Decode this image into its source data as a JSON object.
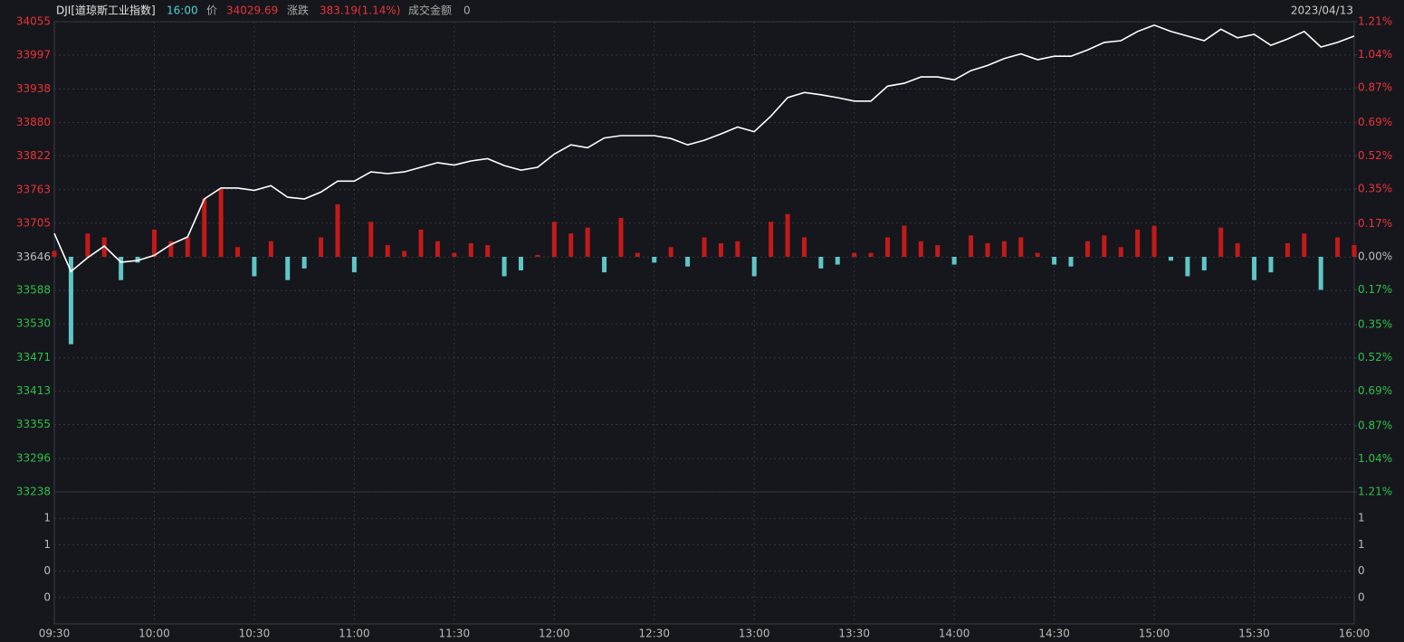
{
  "chart_data": {
    "type": "line",
    "title": "DJI[道琼斯工业指数]",
    "time": "16:00",
    "price_label": "价",
    "price": 34029.69,
    "change_label": "涨跌",
    "change": "383.19(1.14%)",
    "turnover_label": "成交金额",
    "turnover": 0,
    "date": "2023/04/13",
    "x": [
      "09:30",
      "09:35",
      "09:40",
      "09:45",
      "09:50",
      "09:55",
      "10:00",
      "10:05",
      "10:10",
      "10:15",
      "10:20",
      "10:25",
      "10:30",
      "10:35",
      "10:40",
      "10:45",
      "10:50",
      "10:55",
      "11:00",
      "11:05",
      "11:10",
      "11:15",
      "11:20",
      "11:25",
      "11:30",
      "11:35",
      "11:40",
      "11:45",
      "11:50",
      "11:55",
      "12:00",
      "12:05",
      "12:10",
      "12:15",
      "12:20",
      "12:25",
      "12:30",
      "12:35",
      "12:40",
      "12:45",
      "12:50",
      "12:55",
      "13:00",
      "13:05",
      "13:10",
      "13:15",
      "13:20",
      "13:25",
      "13:30",
      "13:35",
      "13:40",
      "13:45",
      "13:50",
      "13:55",
      "14:00",
      "14:05",
      "14:10",
      "14:15",
      "14:20",
      "14:25",
      "14:30",
      "14:35",
      "14:40",
      "14:45",
      "14:50",
      "14:55",
      "15:00",
      "15:05",
      "15:10",
      "15:15",
      "15:20",
      "15:25",
      "15:30",
      "15:35",
      "15:40",
      "15:45",
      "15:50",
      "15:55",
      "16:00"
    ],
    "series": [
      {
        "type": "line",
        "color": "#ffffff",
        "values": [
          33687,
          33621,
          33645,
          33665,
          33637,
          33640,
          33649,
          33668,
          33681,
          33747,
          33766,
          33766,
          33762,
          33770,
          33750,
          33747,
          33759,
          33778,
          33778,
          33794,
          33791,
          33794,
          33802,
          33810,
          33806,
          33813,
          33817,
          33805,
          33797,
          33802,
          33825,
          33841,
          33836,
          33853,
          33857,
          33857,
          33857,
          33852,
          33841,
          33849,
          33860,
          33872,
          33864,
          33891,
          33923,
          33932,
          33928,
          33923,
          33917,
          33917,
          33943,
          33948,
          33959,
          33959,
          33954,
          33970,
          33979,
          33991,
          33999,
          33989,
          33995,
          33995,
          34006,
          34019,
          34022,
          34038,
          34049,
          34038,
          34030,
          34022,
          34042,
          34027,
          34033,
          34014,
          34025,
          34038,
          34011,
          34019,
          34030
        ]
      },
      {
        "type": "bar",
        "axis": "y2",
        "up_color": "#c41a1a",
        "down_color": "#5ec6c6",
        "values": [
          0.03,
          -0.45,
          0.12,
          0.1,
          -0.12,
          -0.03,
          0.14,
          0.08,
          0.1,
          0.3,
          0.35,
          0.05,
          -0.1,
          0.08,
          -0.12,
          -0.06,
          0.1,
          0.27,
          -0.08,
          0.18,
          0.06,
          0.03,
          0.14,
          0.08,
          0.02,
          0.07,
          0.06,
          -0.1,
          -0.07,
          0.01,
          0.18,
          0.12,
          0.15,
          -0.08,
          0.2,
          0.02,
          -0.03,
          0.05,
          -0.05,
          0.1,
          0.07,
          0.08,
          -0.1,
          0.18,
          0.22,
          0.1,
          -0.06,
          -0.04,
          0.02,
          0.02,
          0.1,
          0.16,
          0.08,
          0.06,
          -0.04,
          0.11,
          0.07,
          0.08,
          0.1,
          0.02,
          -0.04,
          -0.05,
          0.08,
          0.11,
          0.05,
          0.14,
          0.16,
          -0.02,
          -0.1,
          -0.07,
          0.15,
          0.07,
          -0.12,
          -0.08,
          0.07,
          0.12,
          -0.17,
          0.1,
          0.06
        ]
      }
    ],
    "xlim": [
      "09:30",
      "16:00"
    ],
    "xticks": [
      "09:30",
      "10:00",
      "10:30",
      "11:00",
      "11:30",
      "12:00",
      "12:30",
      "13:00",
      "13:30",
      "14:00",
      "14:30",
      "15:00",
      "15:30",
      "16:00"
    ],
    "ylim": [
      33238,
      34055
    ],
    "yticks": [
      34055,
      33997,
      33938,
      33880,
      33822,
      33763,
      33705,
      33646,
      33588,
      33530,
      33471,
      33413,
      33355,
      33296,
      33238
    ],
    "y2lim": [
      -1.21,
      1.21
    ],
    "y2ticks": [
      {
        "value": 1.21,
        "label": "1.21%"
      },
      {
        "value": 1.04,
        "label": "1.04%"
      },
      {
        "value": 0.87,
        "label": "0.87%"
      },
      {
        "value": 0.69,
        "label": "0.69%"
      },
      {
        "value": 0.52,
        "label": "0.52%"
      },
      {
        "value": 0.35,
        "label": "0.35%"
      },
      {
        "value": 0.17,
        "label": "0.17%"
      },
      {
        "value": 0,
        "label": "0.00%"
      },
      {
        "value": -0.17,
        "label": "0.17%"
      },
      {
        "value": -0.35,
        "label": "0.35%"
      },
      {
        "value": -0.52,
        "label": "0.52%"
      },
      {
        "value": -0.69,
        "label": "0.69%"
      },
      {
        "value": -0.87,
        "label": "0.87%"
      },
      {
        "value": -1.04,
        "label": "1.04%"
      },
      {
        "value": -1.21,
        "label": "1.21%"
      }
    ],
    "volume_panel": {
      "ylim": [
        0,
        1
      ],
      "yticks": [
        {
          "value": 0.8,
          "label": "1"
        },
        {
          "value": 0.6,
          "label": "1"
        },
        {
          "value": 0.4,
          "label": "0"
        },
        {
          "value": 0.2,
          "label": "0"
        }
      ]
    },
    "grid": true,
    "up_color": "#e8333a",
    "down_color": "#2fbf4a",
    "flat_color": "#bbbbbb"
  }
}
